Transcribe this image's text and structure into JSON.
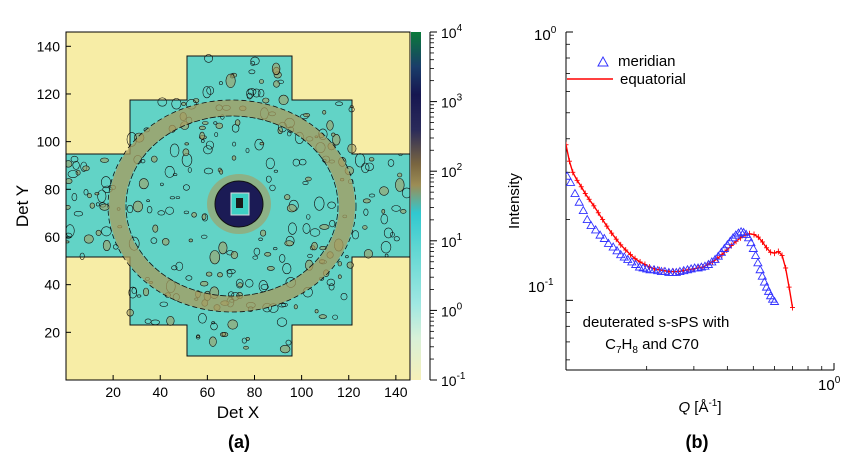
{
  "panel_a": {
    "label": "(a)",
    "xlabel": "Det X",
    "ylabel": "Det Y",
    "xticks": [
      "20",
      "40",
      "60",
      "80",
      "100",
      "120",
      "140"
    ],
    "yticks": [
      "20",
      "40",
      "60",
      "80",
      "100",
      "120",
      "140"
    ],
    "colorbar": {
      "ticks": [
        {
          "base": "10",
          "exp": "4"
        },
        {
          "base": "10",
          "exp": "3"
        },
        {
          "base": "10",
          "exp": "2"
        },
        {
          "base": "10",
          "exp": "1"
        },
        {
          "base": "10",
          "exp": "0"
        },
        {
          "base": "10",
          "exp": "-1"
        }
      ]
    },
    "colors": {
      "background": "#f7eda6",
      "data": "#62d3c6",
      "ring": "#a89b5c",
      "contour": "#111111",
      "center": "#1b1b55"
    }
  },
  "panel_b": {
    "label": "(b)",
    "ylabel": "Intensity",
    "xlabel_prefix": "Q",
    "xlabel_suffix": " [Å",
    "xlabel_exp": "-1",
    "xlabel_close": "]",
    "xtick": {
      "base": "10",
      "exp": "0"
    },
    "yticks": [
      {
        "base": "10",
        "exp": "0"
      },
      {
        "base": "10",
        "exp": "-1"
      }
    ],
    "annotation_line1": "deuterated s-sPS with",
    "annotation_line2_a": "C",
    "annotation_line2_sub1": "7",
    "annotation_line2_b": "H",
    "annotation_line2_sub2": "8",
    "annotation_line2_c": " and C70"
  },
  "chart_data": [
    {
      "type": "heatmap",
      "title": "",
      "xlabel": "Det X",
      "ylabel": "Det Y",
      "xlim": [
        0,
        146
      ],
      "ylim": [
        0,
        146
      ],
      "color_scale": "log",
      "color_range": [
        0.1,
        10000
      ],
      "beam_center": [
        70,
        73
      ]
    },
    {
      "type": "scatter",
      "xlabel": "Q [Å-1]",
      "ylabel": "Intensity",
      "xscale": "log",
      "yscale": "log",
      "xlim": [
        0.1,
        1.0
      ],
      "ylim": [
        0.055,
        1.0
      ],
      "series": [
        {
          "name": "meridian",
          "marker": "triangle",
          "color": "#3333ff",
          "x": [
            0.101,
            0.104,
            0.108,
            0.112,
            0.116,
            0.12,
            0.124,
            0.129,
            0.134,
            0.139,
            0.144,
            0.15,
            0.155,
            0.16,
            0.165,
            0.17,
            0.176,
            0.182,
            0.188,
            0.194,
            0.2,
            0.206,
            0.213,
            0.22,
            0.227,
            0.234,
            0.242,
            0.25,
            0.258,
            0.266,
            0.275,
            0.284,
            0.293,
            0.302,
            0.311,
            0.32,
            0.33,
            0.34,
            0.35,
            0.36,
            0.37,
            0.38,
            0.39,
            0.4,
            0.41,
            0.42,
            0.43,
            0.44,
            0.45,
            0.46,
            0.47,
            0.48,
            0.49,
            0.5,
            0.51,
            0.52,
            0.53,
            0.54,
            0.55,
            0.56,
            0.57,
            0.58,
            0.59,
            0.6
          ],
          "y": [
            0.29,
            0.275,
            0.25,
            0.232,
            0.216,
            0.2,
            0.19,
            0.183,
            0.175,
            0.17,
            0.163,
            0.158,
            0.153,
            0.148,
            0.145,
            0.142,
            0.139,
            0.136,
            0.133,
            0.132,
            0.131,
            0.13,
            0.13,
            0.129,
            0.128,
            0.128,
            0.127,
            0.127,
            0.127,
            0.128,
            0.129,
            0.13,
            0.131,
            0.132,
            0.132,
            0.133,
            0.134,
            0.136,
            0.139,
            0.142,
            0.146,
            0.151,
            0.156,
            0.161,
            0.166,
            0.171,
            0.175,
            0.178,
            0.18,
            0.179,
            0.176,
            0.171,
            0.164,
            0.156,
            0.147,
            0.138,
            0.13,
            0.123,
            0.117,
            0.112,
            0.108,
            0.104,
            0.101,
            0.099
          ]
        },
        {
          "name": "equatorial",
          "marker": "line",
          "color": "#ff0000",
          "x": [
            0.1,
            0.103,
            0.106,
            0.11,
            0.114,
            0.118,
            0.122,
            0.127,
            0.132,
            0.137,
            0.142,
            0.148,
            0.154,
            0.16,
            0.167,
            0.174,
            0.181,
            0.189,
            0.197,
            0.205,
            0.214,
            0.223,
            0.232,
            0.242,
            0.252,
            0.263,
            0.274,
            0.286,
            0.298,
            0.311,
            0.324,
            0.338,
            0.352,
            0.367,
            0.382,
            0.398,
            0.414,
            0.431,
            0.448,
            0.466,
            0.484,
            0.503,
            0.522,
            0.541,
            0.56,
            0.58,
            0.6,
            0.62,
            0.64,
            0.66,
            0.68,
            0.7
          ],
          "y": [
            0.38,
            0.33,
            0.3,
            0.28,
            0.265,
            0.25,
            0.238,
            0.225,
            0.212,
            0.2,
            0.189,
            0.178,
            0.169,
            0.161,
            0.154,
            0.148,
            0.143,
            0.139,
            0.136,
            0.133,
            0.131,
            0.13,
            0.129,
            0.128,
            0.128,
            0.128,
            0.129,
            0.13,
            0.131,
            0.132,
            0.133,
            0.136,
            0.139,
            0.143,
            0.148,
            0.154,
            0.16,
            0.166,
            0.171,
            0.175,
            0.177,
            0.176,
            0.172,
            0.165,
            0.157,
            0.151,
            0.15,
            0.152,
            0.147,
            0.132,
            0.112,
            0.094
          ]
        }
      ]
    }
  ]
}
